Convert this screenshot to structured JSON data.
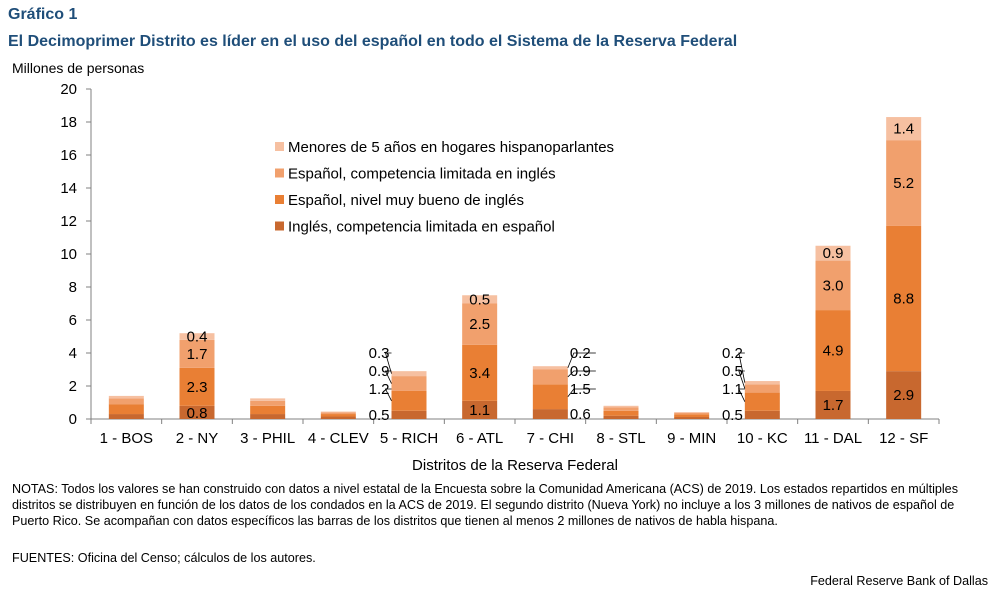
{
  "header": {
    "figure_label": "Gráfico 1",
    "title": "El Decimoprimer Distrito es líder en el uso del español en todo el Sistema de la Reserva Federal",
    "y_unit": "Millones de personas"
  },
  "colors": {
    "ingles_limitada": "#c8682f",
    "espanol_muy_bueno": "#e97f34",
    "espanol_limitada": "#f1a06d",
    "menores_5": "#f6c0a1",
    "axis": "#808080",
    "title": "#1f4e79"
  },
  "chart_data": {
    "type": "bar",
    "stacked": true,
    "title": "El Decimoprimer Distrito es líder en el uso del español en todo el Sistema de la Reserva Federal",
    "xlabel": "Distritos de la Reserva Federal",
    "ylabel": "Millones de personas",
    "ylim": [
      0,
      20
    ],
    "yticks": [
      0,
      2,
      4,
      6,
      8,
      10,
      12,
      14,
      16,
      18,
      20
    ],
    "ytick_labels": [
      "0",
      "2",
      "4",
      "6",
      "8",
      "10",
      "12",
      "14",
      "16",
      "18",
      "20"
    ],
    "legend_position": "upper-center",
    "categories": [
      "1 - BOS",
      "2 - NY",
      "3 - PHIL",
      "4 - CLEV",
      "5 - RICH",
      "6 - ATL",
      "7 - CHI",
      "8 - STL",
      "9 - MIN",
      "10 - KC",
      "11 - DAL",
      "12 - SF"
    ],
    "series": [
      {
        "name": "Inglés, competencia limitada en español",
        "values": [
          0.3,
          0.8,
          0.3,
          0.15,
          0.5,
          1.1,
          0.6,
          0.2,
          0.12,
          0.5,
          1.7,
          2.9
        ]
      },
      {
        "name": "Español, nivel muy bueno de inglés",
        "values": [
          0.6,
          2.3,
          0.5,
          0.15,
          1.2,
          3.4,
          1.5,
          0.3,
          0.15,
          1.1,
          4.9,
          8.8
        ]
      },
      {
        "name": "Español, competencia limitada en inglés",
        "values": [
          0.35,
          1.7,
          0.3,
          0.1,
          0.9,
          2.5,
          0.9,
          0.2,
          0.1,
          0.5,
          3.0,
          5.2
        ]
      },
      {
        "name": "Menores de 5 años en hogares hispanoparlantes",
        "values": [
          0.15,
          0.4,
          0.15,
          0.05,
          0.3,
          0.5,
          0.2,
          0.1,
          0.05,
          0.2,
          0.9,
          1.4
        ]
      }
    ],
    "labeled_districts": {
      "2 - NY": {
        "labels": [
          "0.8",
          "2.3",
          "1.7",
          "0.4"
        ],
        "style": "inside"
      },
      "5 - RICH": {
        "labels": [
          "0.5",
          "1.2",
          "0.9",
          "0.3"
        ],
        "style": "callout"
      },
      "6 - ATL": {
        "labels": [
          "1.1",
          "3.4",
          "2.5",
          "0.5"
        ],
        "style": "inside"
      },
      "7 - CHI": {
        "labels": [
          "0.6",
          "1.5",
          "0.9",
          "0.2"
        ],
        "style": "callout-right"
      },
      "10 - KC": {
        "labels": [
          "0.5",
          "1.1",
          "0.5",
          "0.2"
        ],
        "style": "callout"
      },
      "11 - DAL": {
        "labels": [
          "1.7",
          "4.9",
          "3.0",
          "0.9"
        ],
        "style": "inside"
      },
      "12 - SF": {
        "labels": [
          "2.9",
          "8.8",
          "5.2",
          "1.4"
        ],
        "style": "inside"
      }
    }
  },
  "footer": {
    "notes": "NOTAS: Todos los valores se han construido con datos a nivel estatal de la Encuesta sobre la Comunidad Americana (ACS) de 2019. Los estados repartidos en múltiples distritos se distribuyen en función de los datos de los condados en la ACS de 2019. El segundo distrito (Nueva York) no incluye a los 3 millones de nativos de español de Puerto Rico. Se acompañan con datos específicos las barras de los distritos que tienen al menos 2 millones de nativos de habla hispana.",
    "sources": "FUENTES: Oficina del Censo; cálculos de los autores.",
    "credit": "Federal Reserve Bank of Dallas"
  }
}
